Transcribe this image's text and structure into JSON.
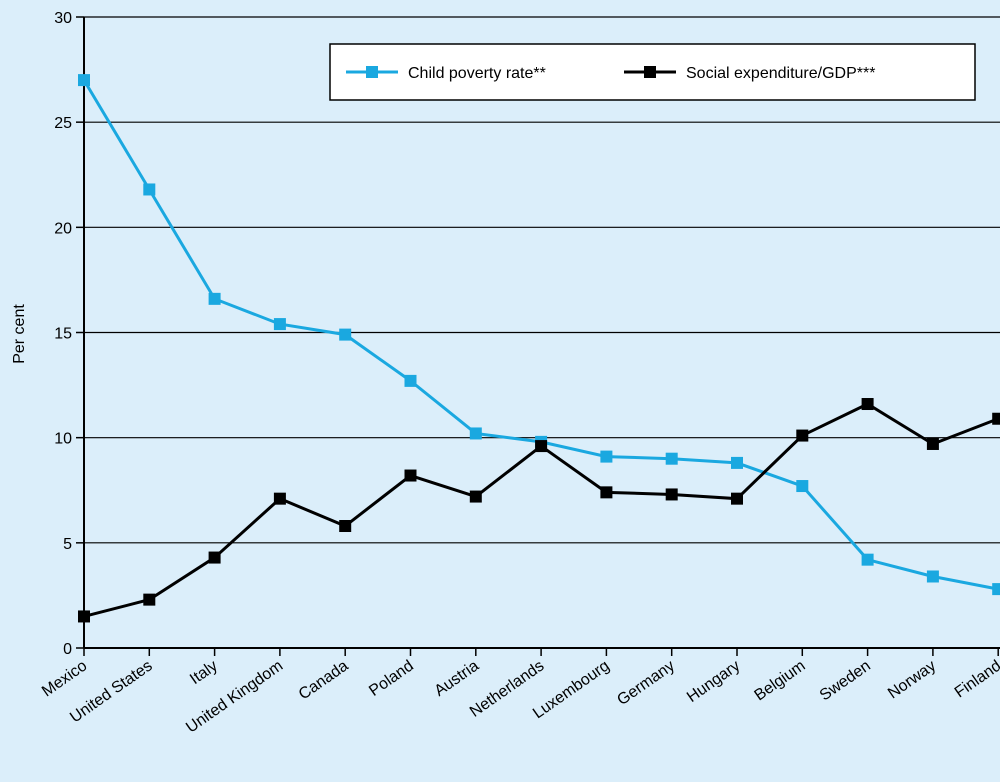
{
  "chart_data": {
    "type": "line",
    "title": "",
    "xlabel": "",
    "ylabel": "Per cent",
    "ylim": [
      0,
      30
    ],
    "yticks": [
      0,
      5,
      10,
      15,
      20,
      25,
      30
    ],
    "grid": true,
    "legend_position": "top-right",
    "categories": [
      "Mexico",
      "United States",
      "Italy",
      "United Kingdom",
      "Canada",
      "Poland",
      "Austria",
      "Netherlands",
      "Luxembourg",
      "Germany",
      "Hungary",
      "Belgium",
      "Sweden",
      "Norway",
      "Finland"
    ],
    "series": [
      {
        "name": "Child poverty rate**",
        "color": "#1aa8e0",
        "values": [
          27.0,
          21.8,
          16.6,
          15.4,
          14.9,
          12.7,
          10.2,
          9.8,
          9.1,
          9.0,
          8.8,
          7.7,
          4.2,
          3.4,
          2.8
        ]
      },
      {
        "name": "Social expenditure/GDP***",
        "color": "#000000",
        "values": [
          1.5,
          2.3,
          4.3,
          7.1,
          5.8,
          8.2,
          7.2,
          9.6,
          7.4,
          7.3,
          7.1,
          10.1,
          11.6,
          9.7,
          10.9
        ]
      }
    ]
  }
}
